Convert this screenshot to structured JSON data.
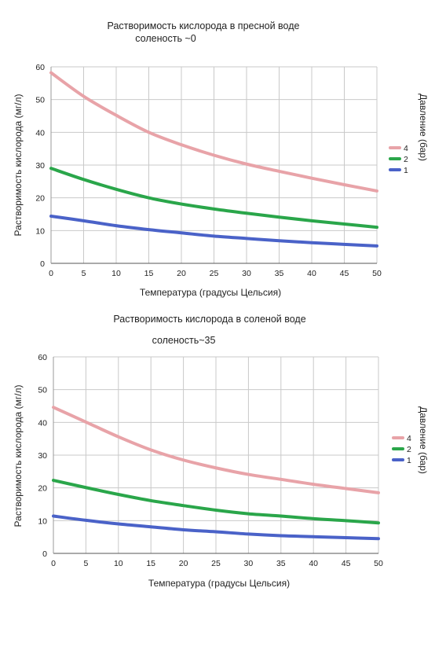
{
  "chart_data": [
    {
      "type": "line",
      "title": "Растворимость кислорода в пресной воде",
      "subtitle": "соленость ~0",
      "xlabel": "Температура (градусы Цельсия)",
      "ylabel": "Растворимость кислорода (мг/л)",
      "legend_title": "Давление (бар)",
      "legend_position": "right",
      "grid": true,
      "xlim": [
        0,
        50
      ],
      "ylim": [
        0,
        60
      ],
      "x_ticks": [
        0,
        5,
        10,
        15,
        20,
        25,
        30,
        35,
        40,
        45,
        50
      ],
      "y_ticks": [
        0,
        10,
        20,
        30,
        40,
        50,
        60
      ],
      "x": [
        0,
        5,
        10,
        15,
        20,
        25,
        30,
        35,
        40,
        45,
        50
      ],
      "series": [
        {
          "name": "4",
          "color": "#e8a3a8",
          "values": [
            58.2,
            51.0,
            45.2,
            40.0,
            36.2,
            33.0,
            30.3,
            28.1,
            26.0,
            24.0,
            22.1
          ]
        },
        {
          "name": "2",
          "color": "#2aa64a",
          "values": [
            29.0,
            25.6,
            22.6,
            20.0,
            18.1,
            16.6,
            15.3,
            14.1,
            13.0,
            12.0,
            11.0
          ]
        },
        {
          "name": "1",
          "color": "#4a62c8",
          "values": [
            14.4,
            13.0,
            11.5,
            10.3,
            9.3,
            8.3,
            7.6,
            6.9,
            6.3,
            5.8,
            5.3
          ]
        }
      ]
    },
    {
      "type": "line",
      "title": "Растворимость кислорода в соленой воде",
      "subtitle": "соленость~35",
      "xlabel": "Температура (градусы Цельсия)",
      "ylabel": "Растворимость кислорода (мг/л)",
      "legend_title": "Давление (бар)",
      "legend_position": "right",
      "grid": true,
      "xlim": [
        0,
        50
      ],
      "ylim": [
        0,
        60
      ],
      "x_ticks": [
        0,
        5,
        10,
        15,
        20,
        25,
        30,
        35,
        40,
        45,
        50
      ],
      "y_ticks": [
        0,
        10,
        20,
        30,
        40,
        50,
        60
      ],
      "x": [
        0,
        5,
        10,
        15,
        20,
        25,
        30,
        35,
        40,
        45,
        50
      ],
      "series": [
        {
          "name": "4",
          "color": "#e8a3a8",
          "values": [
            44.6,
            40.1,
            35.6,
            31.6,
            28.5,
            26.1,
            24.1,
            22.6,
            21.1,
            19.8,
            18.5
          ]
        },
        {
          "name": "2",
          "color": "#2aa64a",
          "values": [
            22.3,
            20.1,
            18.0,
            16.1,
            14.6,
            13.2,
            12.1,
            11.4,
            10.6,
            10.0,
            9.3
          ]
        },
        {
          "name": "1",
          "color": "#4a62c8",
          "values": [
            11.4,
            10.1,
            9.0,
            8.1,
            7.2,
            6.6,
            5.9,
            5.4,
            5.1,
            4.8,
            4.5
          ]
        }
      ]
    }
  ]
}
